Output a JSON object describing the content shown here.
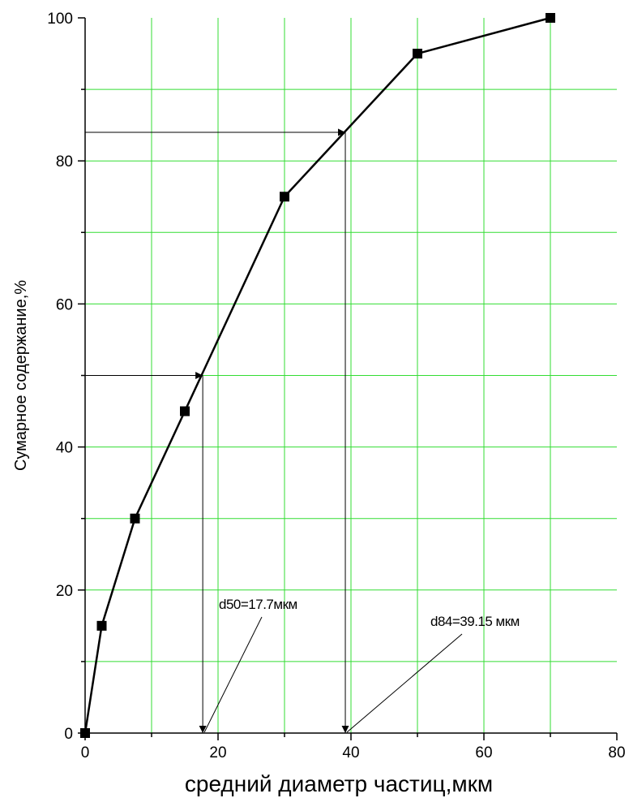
{
  "chart_data": {
    "type": "line",
    "title": "",
    "xlabel": "средний диаметр частиц,мкм",
    "ylabel": "Сумарное содержание,%",
    "xlim": [
      0,
      80
    ],
    "ylim": [
      0,
      100
    ],
    "xticks": [
      "0",
      "20",
      "40",
      "60",
      "80"
    ],
    "yticks": [
      "0",
      "20",
      "40",
      "60",
      "80",
      "100"
    ],
    "grid": true,
    "grid_color": "#33dd33",
    "series": [
      {
        "marker": "square",
        "color": "#000000",
        "x": [
          0,
          2.5,
          7.5,
          15,
          30,
          50,
          70
        ],
        "y": [
          0,
          15,
          30,
          45,
          75,
          95,
          100
        ]
      }
    ],
    "annotations": [
      {
        "label": "d50=17.7мкм",
        "x": 17.7,
        "y": 50
      },
      {
        "label": "d84=39.15 мкм",
        "x": 39.15,
        "y": 84
      }
    ]
  }
}
